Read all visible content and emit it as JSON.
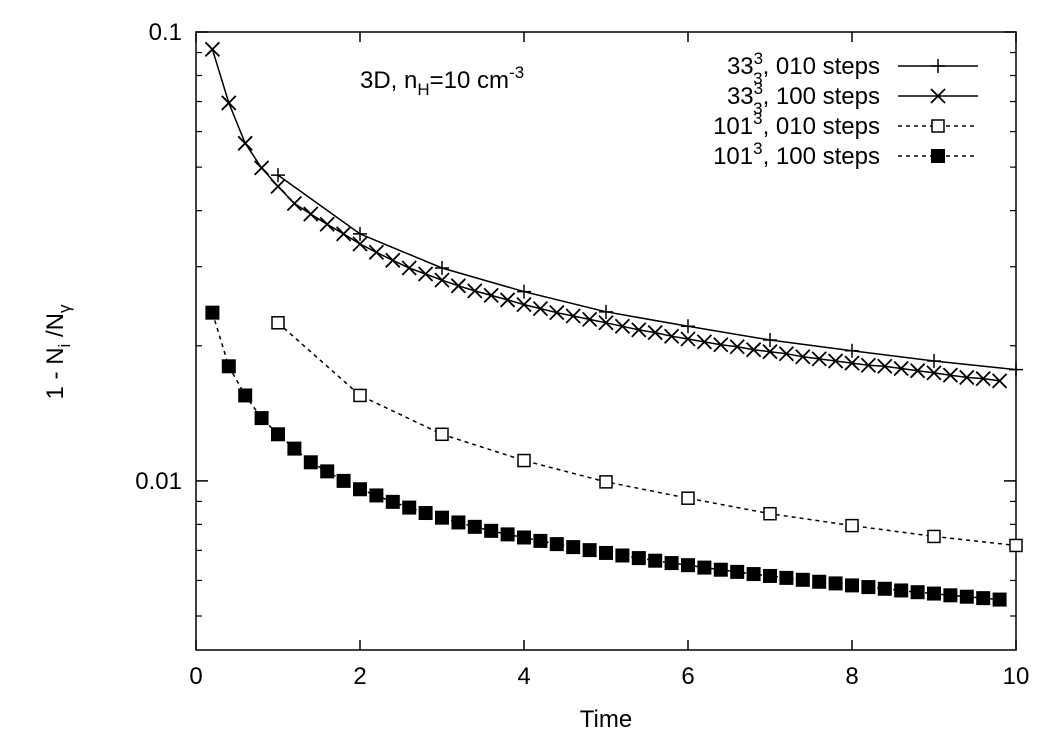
{
  "chart_data": {
    "type": "line",
    "title": "",
    "annotation": {
      "prefix": "3D, n",
      "sub": "H",
      "mid": "=10 cm",
      "sup": "-3"
    },
    "xlabel": "Time",
    "ylabel": {
      "a": "1 - N",
      "sub1": "i",
      "b": " /N",
      "sub2": "γ"
    },
    "xlim": [
      0,
      10
    ],
    "ylim": [
      0.0042,
      0.1
    ],
    "yscale": "log",
    "grid": false,
    "legend_position": "top-right",
    "x_ticks": [
      0,
      2,
      4,
      6,
      8,
      10
    ],
    "x_tick_labels": [
      "0",
      "2",
      "4",
      "6",
      "8",
      "10"
    ],
    "y_major_ticks": [
      0.01,
      0.1
    ],
    "y_tick_labels": [
      "0.01",
      "0.1"
    ],
    "series": [
      {
        "name": {
          "base": "33",
          "sup": "3",
          "sub": "3",
          "rest": ", 010 steps"
        },
        "marker": "plus",
        "line": "solid",
        "x": [
          1,
          2,
          3,
          4,
          5,
          6,
          7,
          8,
          9,
          10
        ],
        "y": [
          0.048,
          0.0355,
          0.0298,
          0.0264,
          0.0238,
          0.0221,
          0.0206,
          0.0195,
          0.0185,
          0.0177
        ]
      },
      {
        "name": {
          "base": "33",
          "sup": "3",
          "sub": "3",
          "rest": ", 100 steps"
        },
        "marker": "cross",
        "line": "solid",
        "x": [
          0.2,
          0.4,
          0.6,
          0.8,
          1.0,
          1.2,
          1.4,
          1.6,
          1.8,
          2.0,
          2.2,
          2.4,
          2.6,
          2.8,
          3.0,
          3.2,
          3.4,
          3.6,
          3.8,
          4.0,
          4.2,
          4.4,
          4.6,
          4.8,
          5.0,
          5.2,
          5.4,
          5.6,
          5.8,
          6.0,
          6.2,
          6.4,
          6.6,
          6.8,
          7.0,
          7.2,
          7.4,
          7.6,
          7.8,
          8.0,
          8.2,
          8.4,
          8.6,
          8.8,
          9.0,
          9.2,
          9.4,
          9.6,
          9.8
        ],
        "y": [
          0.0915,
          0.0695,
          0.0565,
          0.0498,
          0.0453,
          0.0415,
          0.0393,
          0.0373,
          0.0355,
          0.0337,
          0.0323,
          0.031,
          0.0298,
          0.0289,
          0.028,
          0.0272,
          0.0265,
          0.0259,
          0.0253,
          0.0247,
          0.0242,
          0.0237,
          0.0233,
          0.0229,
          0.0225,
          0.0221,
          0.0217,
          0.0214,
          0.021,
          0.0207,
          0.0204,
          0.0201,
          0.0199,
          0.0196,
          0.0194,
          0.0192,
          0.0189,
          0.0187,
          0.0185,
          0.0183,
          0.0181,
          0.018,
          0.0178,
          0.0176,
          0.0174,
          0.0172,
          0.017,
          0.0169,
          0.0167
        ]
      },
      {
        "name": {
          "base": "101",
          "sup": "3",
          "sub": "",
          "rest": ", 010 steps"
        },
        "marker": "open-square",
        "line": "dashed",
        "x": [
          1,
          2,
          3,
          4,
          5,
          6,
          7,
          8,
          9,
          10
        ],
        "y": [
          0.0225,
          0.0155,
          0.0127,
          0.0111,
          0.00995,
          0.00915,
          0.00845,
          0.00795,
          0.00752,
          0.00718
        ]
      },
      {
        "name": {
          "base": "101",
          "sup": "3",
          "sub": "",
          "rest": ", 100 steps"
        },
        "marker": "filled-square",
        "line": "dashed",
        "x": [
          0.2,
          0.4,
          0.6,
          0.8,
          1.0,
          1.2,
          1.4,
          1.6,
          1.8,
          2.0,
          2.2,
          2.4,
          2.6,
          2.8,
          3.0,
          3.2,
          3.4,
          3.6,
          3.8,
          4.0,
          4.2,
          4.4,
          4.6,
          4.8,
          5.0,
          5.2,
          5.4,
          5.6,
          5.8,
          6.0,
          6.2,
          6.4,
          6.6,
          6.8,
          7.0,
          7.2,
          7.4,
          7.6,
          7.8,
          8.0,
          8.2,
          8.4,
          8.6,
          8.8,
          9.0,
          9.2,
          9.4,
          9.6,
          9.8
        ],
        "y": [
          0.0237,
          0.018,
          0.0155,
          0.0138,
          0.0127,
          0.0118,
          0.011,
          0.0105,
          0.01,
          0.00958,
          0.00928,
          0.00898,
          0.00872,
          0.00848,
          0.00828,
          0.00808,
          0.0079,
          0.00774,
          0.0076,
          0.00748,
          0.00735,
          0.00723,
          0.00712,
          0.00701,
          0.00691,
          0.00682,
          0.00673,
          0.00664,
          0.00656,
          0.00649,
          0.00641,
          0.00634,
          0.00627,
          0.0062,
          0.00614,
          0.00608,
          0.00602,
          0.00596,
          0.00591,
          0.00585,
          0.0058,
          0.00575,
          0.0057,
          0.00565,
          0.00561,
          0.00556,
          0.00552,
          0.00548,
          0.00544
        ]
      }
    ]
  }
}
